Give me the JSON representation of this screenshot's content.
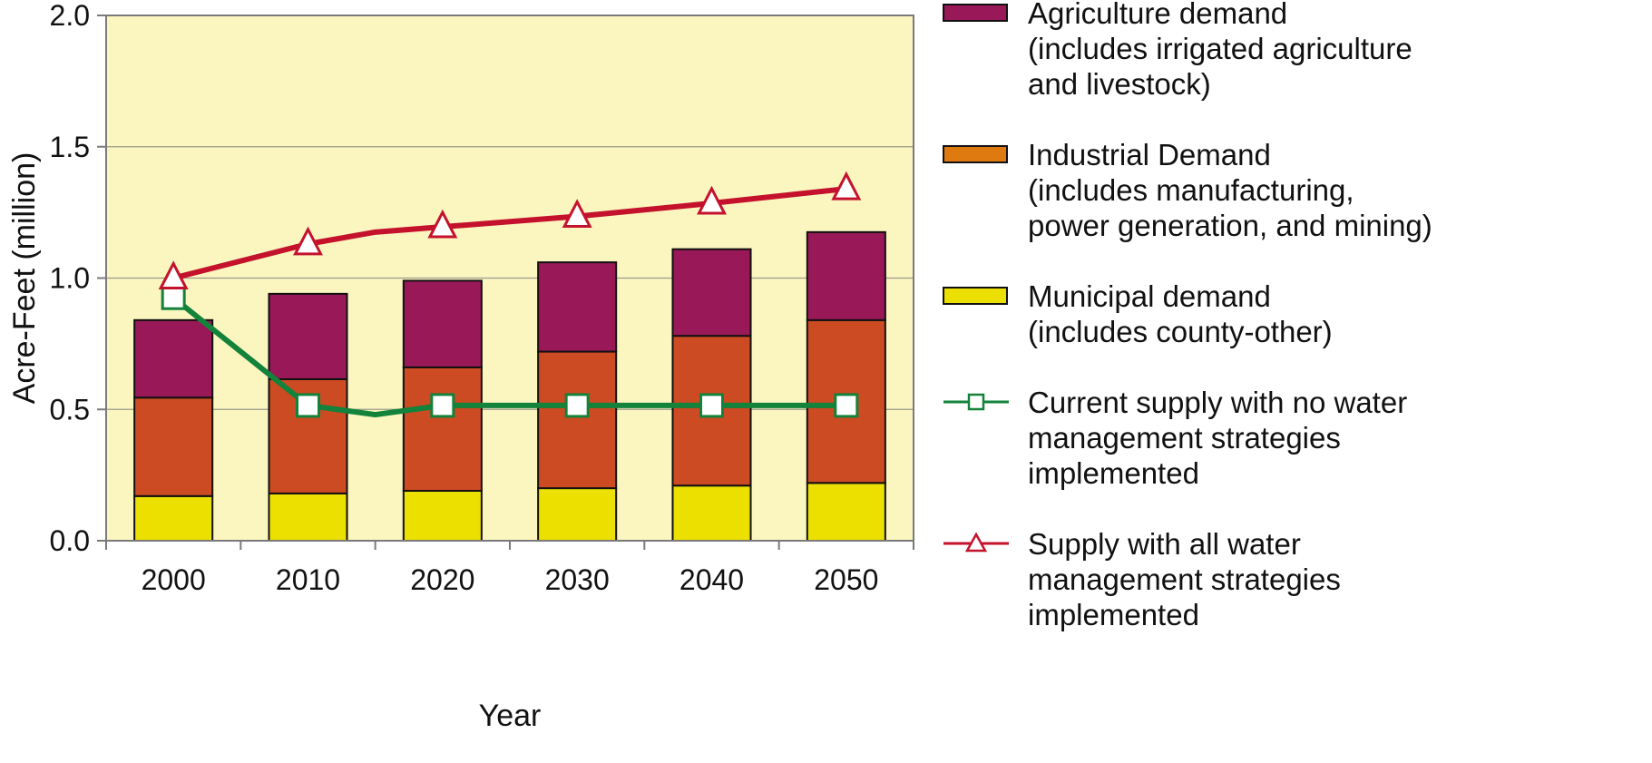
{
  "chart_data": {
    "type": "bar",
    "stacked": true,
    "categories": [
      "2000",
      "2010",
      "2020",
      "2030",
      "2040",
      "2050"
    ],
    "xlabel": "Year",
    "ylabel": "Acre-Feet (million)",
    "ylim": [
      0,
      2.0
    ],
    "yticks": [
      "0.0",
      "0.5",
      "1.0",
      "1.5",
      "2.0"
    ],
    "grid": true,
    "legend_position": "right",
    "plot_background": "#fbf5c0",
    "bar_series": [
      {
        "key": "municipal",
        "color": "#ece000",
        "values": [
          0.17,
          0.18,
          0.19,
          0.2,
          0.21,
          0.22
        ],
        "legend_lines": [
          "Municipal demand",
          "(includes county-other)"
        ]
      },
      {
        "key": "industrial",
        "color": "#cc4b22",
        "values": [
          0.375,
          0.435,
          0.47,
          0.52,
          0.57,
          0.62
        ],
        "legend_lines": [
          "Industrial Demand",
          "(includes manufacturing,",
          "power generation, and mining)"
        ],
        "legend_swatch_color": "#df7a10"
      },
      {
        "key": "agriculture",
        "color": "#981858",
        "values": [
          0.295,
          0.325,
          0.33,
          0.34,
          0.33,
          0.335
        ],
        "legend_lines": [
          "Agriculture demand",
          "(includes irrigated agriculture",
          "and livestock)"
        ]
      }
    ],
    "line_series": [
      {
        "key": "current_supply",
        "color": "#13823a",
        "marker": "square",
        "x": [
          "2000",
          "2010",
          "2015",
          "2020",
          "2030",
          "2040",
          "2050"
        ],
        "values": [
          0.925,
          0.515,
          0.48,
          0.515,
          0.515,
          0.515,
          0.515
        ],
        "marker_x": [
          "2000",
          "2010",
          "2020",
          "2030",
          "2040",
          "2050"
        ],
        "legend_lines": [
          "Current supply with no water",
          "management strategies",
          "implemented"
        ]
      },
      {
        "key": "all_strategies",
        "color": "#c4122c",
        "marker": "triangle",
        "x": [
          "2000",
          "2010",
          "2015",
          "2020",
          "2030",
          "2040",
          "2050"
        ],
        "values": [
          1.0,
          1.13,
          1.175,
          1.195,
          1.235,
          1.285,
          1.34
        ],
        "marker_x": [
          "2000",
          "2010",
          "2020",
          "2030",
          "2040",
          "2050"
        ],
        "legend_lines": [
          "Supply with all water",
          "management strategies",
          "implemented"
        ]
      }
    ],
    "legend_order": [
      "agriculture",
      "industrial",
      "municipal",
      "current_supply",
      "all_strategies"
    ]
  }
}
